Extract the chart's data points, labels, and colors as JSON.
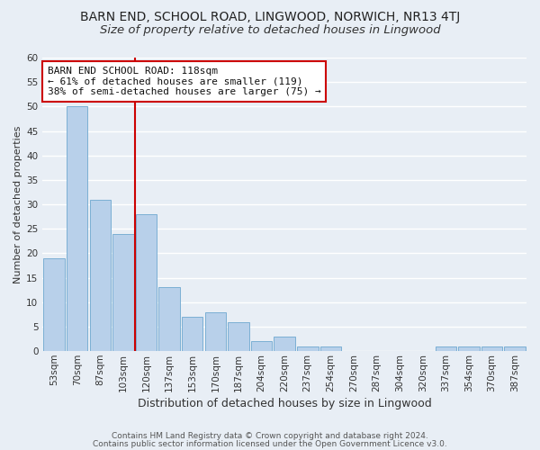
{
  "title": "BARN END, SCHOOL ROAD, LINGWOOD, NORWICH, NR13 4TJ",
  "subtitle": "Size of property relative to detached houses in Lingwood",
  "xlabel": "Distribution of detached houses by size in Lingwood",
  "ylabel": "Number of detached properties",
  "footnote1": "Contains HM Land Registry data © Crown copyright and database right 2024.",
  "footnote2": "Contains public sector information licensed under the Open Government Licence v3.0.",
  "bar_labels": [
    "53sqm",
    "70sqm",
    "87sqm",
    "103sqm",
    "120sqm",
    "137sqm",
    "153sqm",
    "170sqm",
    "187sqm",
    "204sqm",
    "220sqm",
    "237sqm",
    "254sqm",
    "270sqm",
    "287sqm",
    "304sqm",
    "320sqm",
    "337sqm",
    "354sqm",
    "370sqm",
    "387sqm"
  ],
  "bar_values": [
    19,
    50,
    31,
    24,
    28,
    13,
    7,
    8,
    6,
    2,
    3,
    1,
    1,
    0,
    0,
    0,
    0,
    1,
    1,
    1,
    1
  ],
  "bar_color": "#b8d0ea",
  "bar_edge_color": "#7bafd4",
  "ylim": [
    0,
    60
  ],
  "yticks": [
    0,
    5,
    10,
    15,
    20,
    25,
    30,
    35,
    40,
    45,
    50,
    55,
    60
  ],
  "vline_color": "#cc0000",
  "annotation_title": "BARN END SCHOOL ROAD: 118sqm",
  "annotation_line1": "← 61% of detached houses are smaller (119)",
  "annotation_line2": "38% of semi-detached houses are larger (75) →",
  "annotation_box_facecolor": "#ffffff",
  "annotation_box_edgecolor": "#cc0000",
  "background_color": "#e8eef5",
  "plot_bg_color": "#e8eef5",
  "grid_color": "#ffffff",
  "title_fontsize": 10,
  "subtitle_fontsize": 9.5,
  "xlabel_fontsize": 9,
  "ylabel_fontsize": 8,
  "annotation_fontsize": 8,
  "tick_fontsize": 7.5,
  "footnote_fontsize": 6.5
}
